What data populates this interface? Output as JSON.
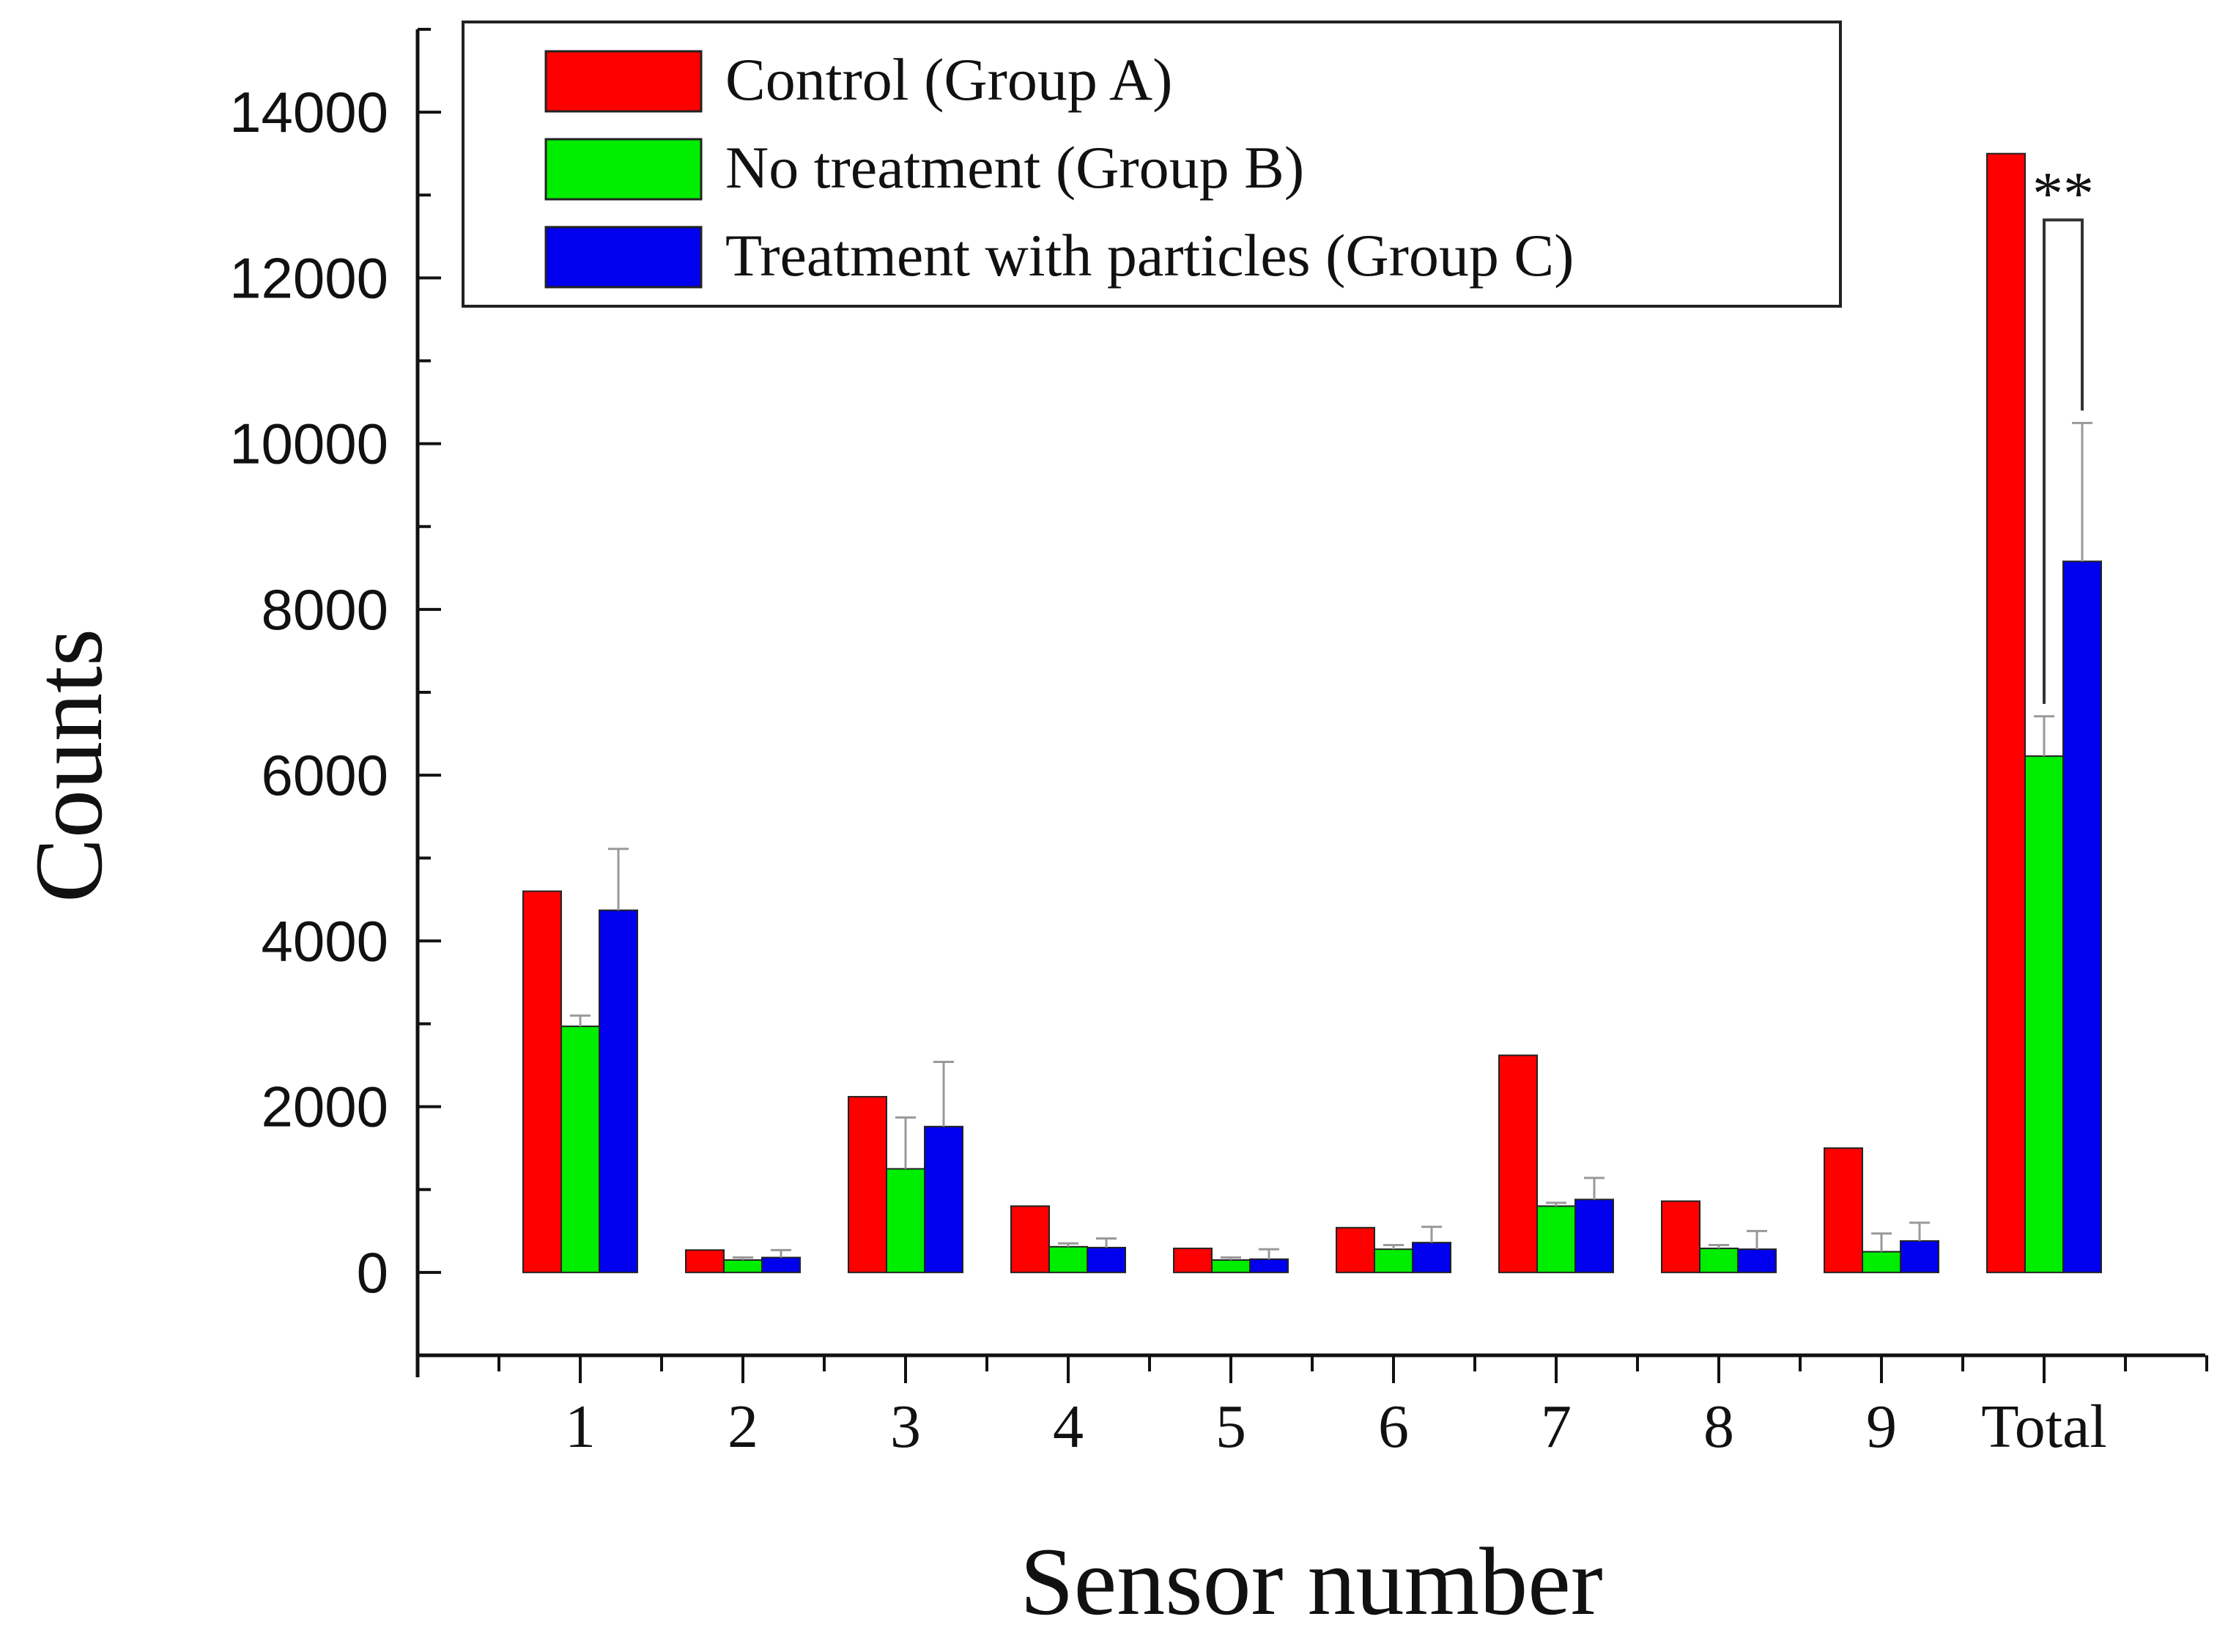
{
  "chart_data": {
    "type": "bar",
    "title": "",
    "xlabel": "Sensor number",
    "ylabel": "Counts",
    "ylim": [
      -1000,
      15000
    ],
    "yticks": [
      0,
      2000,
      4000,
      6000,
      8000,
      10000,
      12000,
      14000
    ],
    "grid": false,
    "legend": "top-left",
    "categories": [
      "1",
      "2",
      "3",
      "4",
      "5",
      "6",
      "7",
      "8",
      "9",
      "Total"
    ],
    "series": [
      {
        "name": "Control (Group A)",
        "color": "#ff0000",
        "values": [
          4600,
          270,
          2120,
          800,
          290,
          540,
          2620,
          860,
          1500,
          13500
        ],
        "errors": [
          0,
          0,
          0,
          0,
          0,
          0,
          0,
          0,
          0,
          0
        ]
      },
      {
        "name": "No treatment (Group B)",
        "color": "#00ee00",
        "values": [
          2970,
          150,
          1250,
          310,
          150,
          280,
          800,
          290,
          250,
          6230
        ],
        "errors": [
          130,
          30,
          620,
          40,
          30,
          50,
          40,
          40,
          220,
          480
        ]
      },
      {
        "name": "Treatment with particles (Group C)",
        "color": "#0000ee",
        "values": [
          4370,
          180,
          1760,
          300,
          160,
          360,
          880,
          280,
          380,
          8580
        ],
        "errors": [
          740,
          90,
          780,
          110,
          120,
          190,
          260,
          220,
          220,
          1670
        ]
      }
    ],
    "annotations": [
      {
        "text": "**",
        "between_series": [
          1,
          2
        ],
        "category": "Total"
      }
    ]
  }
}
